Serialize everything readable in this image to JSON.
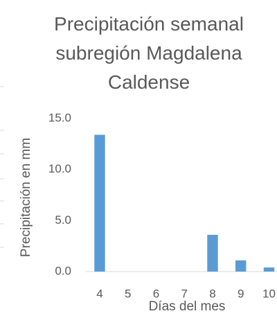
{
  "chart_data": {
    "type": "bar",
    "title": "Precipitación semanal subregión Magdalena Caldense",
    "x_label": "Días del mes",
    "y_label": "Precipitación en mm",
    "categories": [
      "4",
      "5",
      "6",
      "7",
      "8",
      "9",
      "10"
    ],
    "values": [
      13.4,
      0,
      0,
      0,
      3.6,
      1.1,
      0.4
    ],
    "color": "#5b9bd5",
    "ylim": [
      0,
      15
    ],
    "yticks": [
      {
        "value": 0,
        "label": "0.0"
      },
      {
        "value": 5,
        "label": "5.0"
      },
      {
        "value": 10,
        "label": "10.0"
      },
      {
        "value": 15,
        "label": "15.0"
      }
    ],
    "grid": false
  }
}
